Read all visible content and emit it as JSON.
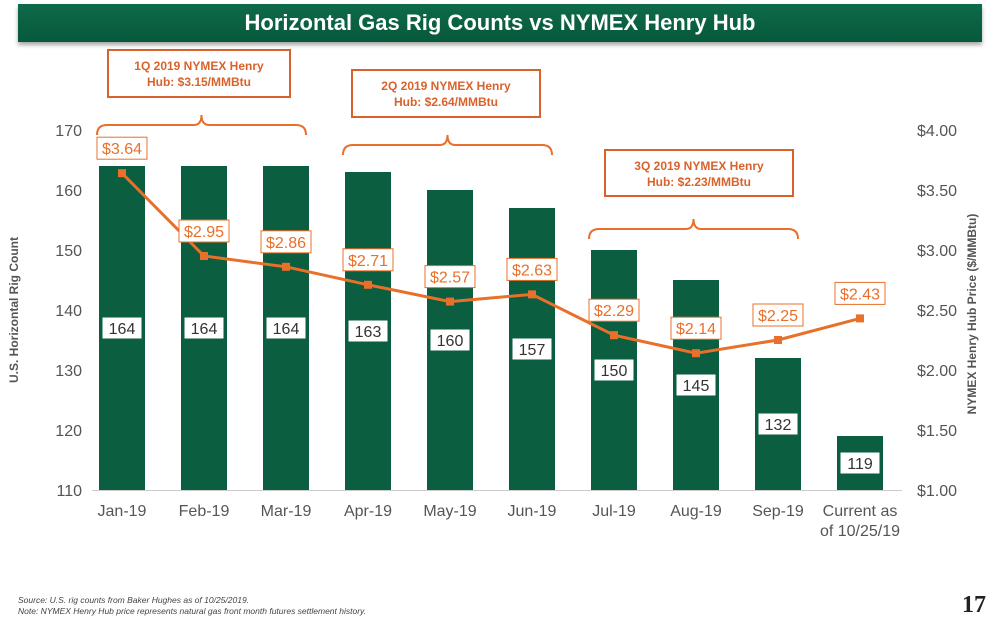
{
  "chart_data": {
    "type": "bar",
    "title": "Horizontal Gas Rig Counts vs NYMEX Henry Hub",
    "categories": [
      "Jan-19",
      "Feb-19",
      "Mar-19",
      "Apr-19",
      "May-19",
      "Jun-19",
      "Jul-19",
      "Aug-19",
      "Sep-19",
      "Current as of 10/25/19"
    ],
    "series": [
      {
        "name": "U.S. Horizontal Rig Count",
        "type": "bar",
        "axis": "left",
        "color": "#0b5e3f",
        "values": [
          164,
          164,
          164,
          163,
          160,
          157,
          150,
          145,
          132,
          119
        ]
      },
      {
        "name": "NYMEX Henry Hub Price ($/MMBtu)",
        "type": "line",
        "axis": "right",
        "color": "#e8702a",
        "values": [
          3.64,
          2.95,
          2.86,
          2.71,
          2.57,
          2.63,
          2.29,
          2.14,
          2.25,
          2.43
        ]
      }
    ],
    "ylabel": "U.S. Horizontal Rig Count",
    "ylabel_right": "NYMEX Henry Hub Price ($/MMBtu)",
    "ylim": [
      110,
      170
    ],
    "yticks": [
      "110",
      "120",
      "130",
      "140",
      "150",
      "160",
      "170"
    ],
    "ylim_right": [
      1.0,
      4.0
    ],
    "yticks_right": [
      "$1.00",
      "$1.50",
      "$2.00",
      "$2.50",
      "$3.00",
      "$3.50",
      "$4.00"
    ],
    "price_labels": [
      "$3.64",
      "$2.95",
      "$2.86",
      "$2.71",
      "$2.57",
      "$2.63",
      "$2.29",
      "$2.14",
      "$2.25",
      "$2.43"
    ],
    "grid": false,
    "annotations": [
      {
        "text": "1Q 2019 NYMEX Henry Hub: $3.15/MMBtu",
        "spans": [
          "Jan-19",
          "Mar-19"
        ]
      },
      {
        "text": "2Q 2019 NYMEX Henry Hub: $2.64/MMBtu",
        "spans": [
          "Apr-19",
          "Jun-19"
        ]
      },
      {
        "text": "3Q 2019 NYMEX Henry Hub: $2.23/MMBtu",
        "spans": [
          "Jul-19",
          "Sep-19"
        ]
      }
    ]
  },
  "footer": {
    "source": "Source: U.S. rig counts from Baker Hughes as of 10/25/2019.",
    "note": "Note:  NYMEX Henry Hub price represents natural gas front month futures settlement history.",
    "page_number": "17"
  }
}
